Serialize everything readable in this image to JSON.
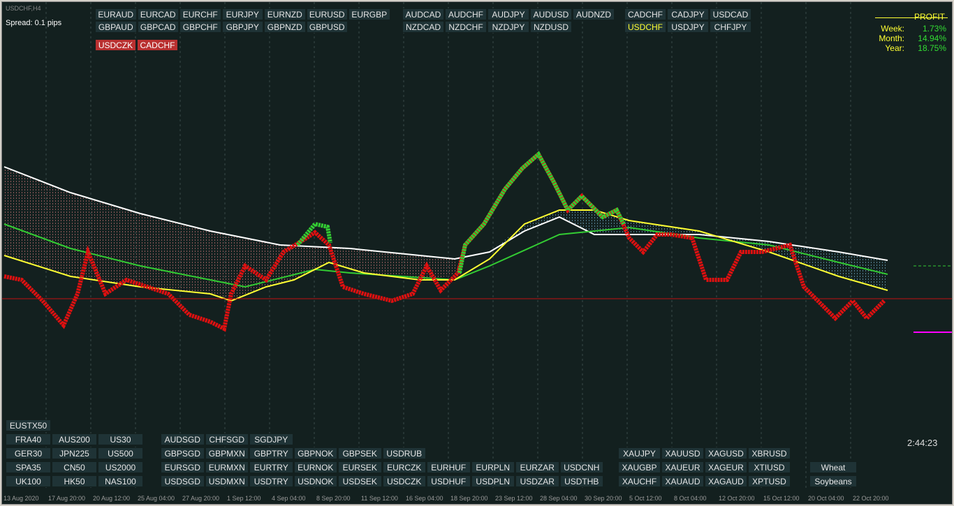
{
  "header": {
    "symbol": "USDCHF,H4",
    "spread": "Spread: 0.1 pips"
  },
  "top_buttons": {
    "group1": [
      [
        "EURAUD",
        "EURCAD",
        "EURCHF",
        "EURJPY",
        "EURNZD",
        "EURUSD",
        "EURGBP"
      ],
      [
        "GBPAUD",
        "GBPCAD",
        "GBPCHF",
        "GBPJPY",
        "GBPNZD",
        "GBPUSD"
      ]
    ],
    "group2": [
      [
        "AUDCAD",
        "AUDCHF",
        "AUDJPY",
        "AUDUSD",
        "AUDNZD"
      ],
      [
        "NZDCAD",
        "NZDCHF",
        "NZDJPY",
        "NZDUSD"
      ]
    ],
    "group3": [
      [
        "CADCHF",
        "CADJPY",
        "USDCAD"
      ],
      [
        "USDCHF",
        "USDJPY",
        "CHFJPY"
      ]
    ]
  },
  "alert_buttons": [
    "USDCZK",
    "CADCHF"
  ],
  "profit": {
    "title": "PROFIT",
    "rows": [
      {
        "label": "Week:",
        "value": "1.73%"
      },
      {
        "label": "Month:",
        "value": "14.94%"
      },
      {
        "label": "Year:",
        "value": "18.75%"
      }
    ]
  },
  "indices": [
    [
      "EUSTX50"
    ],
    [
      "FRA40",
      "AUS200",
      "US30"
    ],
    [
      "GER30",
      "JPN225",
      "US500"
    ],
    [
      "SPA35",
      "CN50",
      "US2000"
    ],
    [
      "UK100",
      "HK50",
      "NAS100"
    ]
  ],
  "crosses": [
    [
      "AUDSGD",
      "CHFSGD",
      "SGDJPY"
    ],
    [
      "GBPSGD",
      "GBPMXN",
      "GBPTRY",
      "GBPNOK",
      "GBPSEK",
      "USDRUB"
    ],
    [
      "EURSGD",
      "EURMXN",
      "EURTRY",
      "EURNOK",
      "EURSEK",
      "EURCZK",
      "EURHUF",
      "EURPLN",
      "EURZAR",
      "USDCNH"
    ],
    [
      "USDSGD",
      "USDMXN",
      "USDTRY",
      "USDNOK",
      "USDSEK",
      "USDCZK",
      "USDHUF",
      "USDPLN",
      "USDZAR",
      "USDTHB"
    ]
  ],
  "metals": [
    [
      "XAUJPY",
      "XAUUSD",
      "XAGUSD",
      "XBRUSD"
    ],
    [
      "XAUGBP",
      "XAUEUR",
      "XAGEUR",
      "XTIUSD"
    ],
    [
      "XAUCHF",
      "XAUAUD",
      "XAGAUD",
      "XPTUSD"
    ]
  ],
  "commodities": [
    "Wheat",
    "Soybeans"
  ],
  "clock": "2:44:23",
  "time_axis": [
    "13 Aug 2020",
    "17 Aug 20:00",
    "20 Aug 12:00",
    "25 Aug 04:00",
    "27 Aug 20:00",
    "1 Sep 12:00",
    "4 Sep 04:00",
    "8 Sep 20:00",
    "11 Sep 12:00",
    "16 Sep 04:00",
    "18 Sep 20:00",
    "23 Sep 12:00",
    "28 Sep 04:00",
    "30 Sep 20:00",
    "5 Oct 12:00",
    "8 Oct 04:00",
    "12 Oct 20:00",
    "15 Oct 12:00",
    "20 Oct 04:00",
    "22 Oct 20:00"
  ]
}
